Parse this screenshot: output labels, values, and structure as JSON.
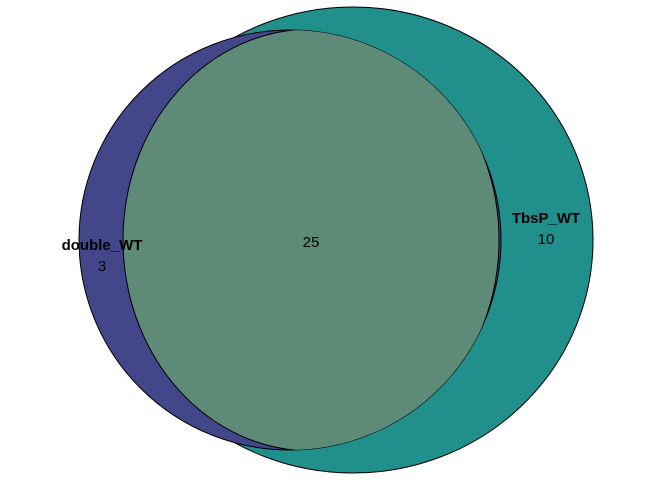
{
  "chart_data": {
    "type": "venn",
    "sets": [
      {
        "name": "double_WT",
        "only_count": "3",
        "color": "#44468A"
      },
      {
        "name": "TbsP_WT",
        "only_count": "10",
        "color": "#21908C"
      }
    ],
    "intersection": {
      "count": "25",
      "color": "#5D8B78"
    },
    "outline_color": "#000000"
  }
}
